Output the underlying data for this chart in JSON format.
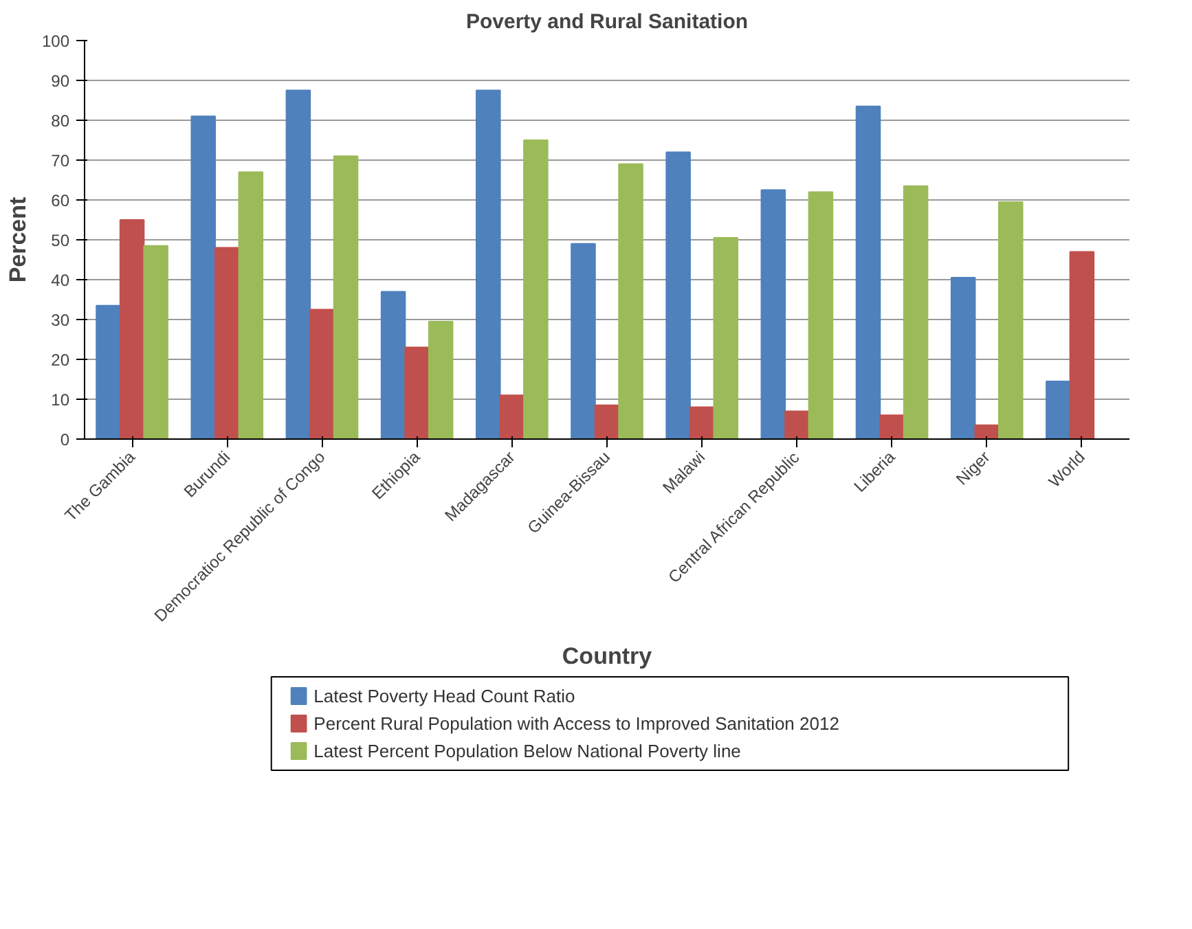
{
  "chart_data": {
    "type": "bar",
    "title": "Poverty and Rural Sanitation",
    "xlabel": "Country",
    "ylabel": "Percent",
    "categories": [
      "The Gambia",
      "Burundi",
      "Democratioc Republic of Congo",
      "Ethiopia",
      "Madagascar",
      "Guinea-Bissau",
      "Malawi",
      "Central African Republic",
      "Liberia",
      "Niger",
      "World"
    ],
    "series": [
      {
        "name": "Latest Poverty Head Count Ratio",
        "color": "#4f81bd",
        "values": [
          33.5,
          81,
          87.5,
          37,
          87.5,
          49,
          72,
          62.5,
          83.5,
          40.5,
          14.5
        ]
      },
      {
        "name": "Percent Rural Population with Access to Improved Sanitation 2012",
        "color": "#c0504d",
        "values": [
          55,
          48,
          32.5,
          23,
          11,
          8.5,
          8,
          7,
          6,
          3.5,
          47
        ]
      },
      {
        "name": "Latest Percent Population Below National Poverty line",
        "color": "#9bbb59",
        "values": [
          48.5,
          67,
          71,
          29.5,
          75,
          69,
          50.5,
          62,
          63.5,
          59.5,
          null
        ]
      }
    ],
    "ylim": [
      0,
      100
    ],
    "yticks": [
      0,
      10,
      20,
      30,
      40,
      50,
      60,
      70,
      80,
      90,
      100
    ],
    "grid": "y",
    "legend": "bottom"
  }
}
